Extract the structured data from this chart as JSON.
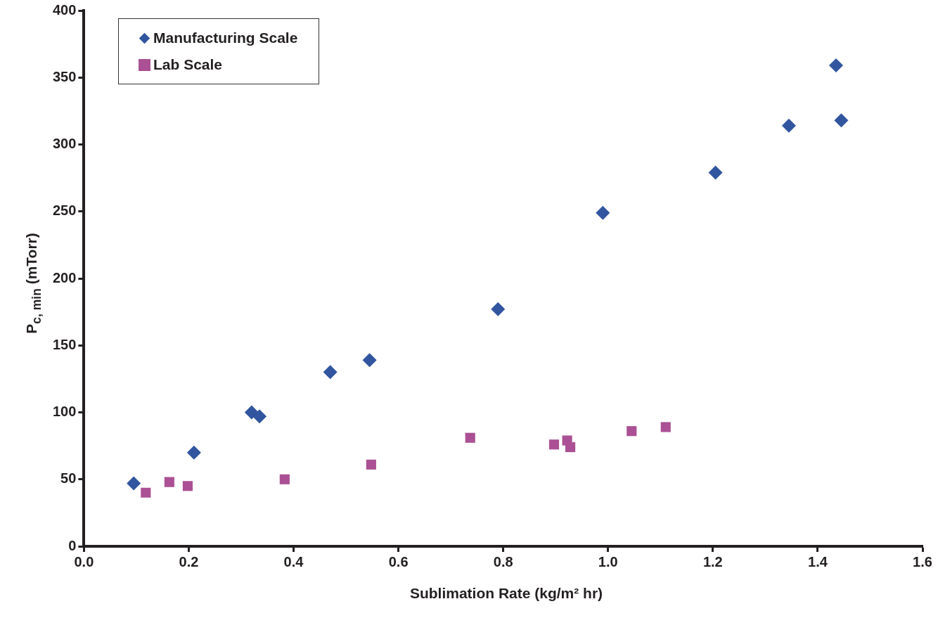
{
  "chart_data": {
    "type": "scatter",
    "xlabel": "Sublimation Rate (kg/m² hr)",
    "ylabel": "P$_{c, min}$ (mTorr)",
    "xlim": [
      0,
      1.6
    ],
    "xticks": [
      {
        "value": 0,
        "label": "0.0"
      },
      {
        "value": 0.2,
        "label": "0.2"
      },
      {
        "value": 0.4,
        "label": "0.4"
      },
      {
        "value": 0.6,
        "label": "0.6"
      },
      {
        "value": 0.8,
        "label": "0.8"
      },
      {
        "value": 1,
        "label": "1.0"
      },
      {
        "value": 1.2,
        "label": "1.2"
      },
      {
        "value": 1.4,
        "label": "1.4"
      },
      {
        "value": 1.6,
        "label": "1.6"
      }
    ],
    "ylim": [
      0,
      400
    ],
    "yticks": [
      0,
      50,
      100,
      150,
      200,
      250,
      300,
      350,
      400
    ],
    "grid": false,
    "legend": "top left",
    "series": [
      {
        "name": "Manufacturing Scale",
        "color": "#31559f",
        "marker": "diamond",
        "x": [
          0.095,
          0.21,
          0.32,
          0.335,
          0.47,
          0.545,
          0.79,
          0.99,
          1.205,
          1.345,
          1.435,
          1.445
        ],
        "values": [
          47,
          70,
          100,
          97,
          130,
          139,
          177,
          249,
          279,
          314,
          359,
          318
        ]
      },
      {
        "name": "Lab Scale",
        "color": "#ab5094",
        "marker": "square",
        "x": [
          0.118,
          0.163,
          0.198,
          0.383,
          0.548,
          0.737,
          0.897,
          0.922,
          0.928,
          1.045,
          1.11
        ],
        "values": [
          40,
          48,
          45,
          50,
          61,
          81,
          76,
          79,
          74,
          86,
          89
        ]
      }
    ]
  }
}
